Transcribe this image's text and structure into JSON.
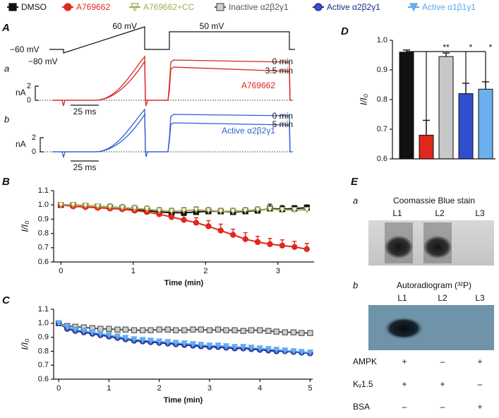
{
  "chart_data": [
    {
      "type": "traces",
      "panel_label": "A",
      "protocol_labels": [
        "60 mV",
        "50 mV",
        "−60 mV",
        "−80 mV"
      ],
      "traces": [
        {
          "label": "a",
          "color": "#d7261e",
          "times": [
            "0 min",
            "3.5 min"
          ],
          "name": "A769662",
          "scale_label": "nA",
          "scale_ticks": [
            2,
            0
          ],
          "time_bar": "25 ms"
        },
        {
          "label": "b",
          "color": "#2f5fd0",
          "times": [
            "0 min",
            "5 min"
          ],
          "name": "Active α2β2γ1",
          "scale_label": "nA",
          "scale_ticks": [
            2,
            0
          ],
          "time_bar": "25 ms"
        }
      ]
    },
    {
      "type": "line",
      "panel_label": "B",
      "xlabel": "Time (min)",
      "ylabel": "I/I₀",
      "xlim": [
        -0.1,
        3.5
      ],
      "xticks": [
        0,
        1,
        2,
        3
      ],
      "ylim": [
        0.6,
        1.1
      ],
      "yticks": [
        0.6,
        0.7,
        0.8,
        0.9,
        {
          "value": 1,
          "label": "1.0"
        },
        1.1
      ],
      "x": [
        0,
        0.17,
        0.34,
        0.51,
        0.68,
        0.85,
        1.02,
        1.19,
        1.36,
        1.53,
        1.7,
        1.87,
        2.04,
        2.21,
        2.38,
        2.55,
        2.72,
        2.89,
        3.06,
        3.23,
        3.4
      ],
      "series": [
        {
          "name": "DMSO",
          "color": "#111111",
          "marker": "square",
          "values": [
            1.0,
            1.0,
            0.995,
            0.99,
            0.985,
            0.98,
            0.97,
            0.96,
            0.95,
            0.945,
            0.945,
            0.95,
            0.955,
            0.955,
            0.95,
            0.955,
            0.96,
            0.975,
            0.97,
            0.975,
            0.98
          ],
          "errors": [
            0.01,
            0.015,
            0.015,
            0.015,
            0.02,
            0.02,
            0.02,
            0.02,
            0.02,
            0.02,
            0.02,
            0.02,
            0.02,
            0.02,
            0.02,
            0.02,
            0.025,
            0.03,
            0.025,
            0.02,
            0.02
          ]
        },
        {
          "name": "A769662",
          "color": "#e0281c",
          "marker": "circle",
          "values": [
            1.0,
            0.99,
            0.985,
            0.98,
            0.975,
            0.97,
            0.96,
            0.95,
            0.935,
            0.915,
            0.895,
            0.875,
            0.85,
            0.82,
            0.79,
            0.76,
            0.74,
            0.725,
            0.715,
            0.705,
            0.69
          ],
          "errors": [
            0.005,
            0.005,
            0.008,
            0.01,
            0.01,
            0.012,
            0.015,
            0.015,
            0.02,
            0.025,
            0.03,
            0.035,
            0.04,
            0.045,
            0.04,
            0.045,
            0.04,
            0.04,
            0.04,
            0.04,
            0.04
          ]
        },
        {
          "name": "A769662+CC",
          "color": "#a8a855",
          "marker": "triangle",
          "values": [
            1.0,
            1.0,
            0.995,
            0.99,
            0.985,
            0.98,
            0.975,
            0.97,
            0.96,
            0.955,
            0.96,
            0.965,
            0.96,
            0.955,
            0.955,
            0.96,
            0.965,
            0.97,
            0.965,
            0.965,
            0.965
          ],
          "errors": [
            0.01,
            0.01,
            0.015,
            0.015,
            0.015,
            0.015,
            0.02,
            0.02,
            0.02,
            0.02,
            0.02,
            0.02,
            0.02,
            0.02,
            0.02,
            0.02,
            0.02,
            0.02,
            0.02,
            0.02,
            0.02
          ]
        }
      ]
    },
    {
      "type": "line",
      "panel_label": "C",
      "xlabel": "Time (min)",
      "ylabel": "I/I₀",
      "xlim": [
        -0.1,
        5.05
      ],
      "xticks": [
        0,
        1,
        2,
        3,
        4,
        5
      ],
      "ylim": [
        0.6,
        1.1
      ],
      "yticks": [
        0.6,
        0.7,
        0.8,
        0.9,
        {
          "value": 1,
          "label": "1.0"
        },
        1.1
      ],
      "x": [
        0,
        0.17,
        0.33,
        0.5,
        0.67,
        0.83,
        1,
        1.17,
        1.33,
        1.5,
        1.67,
        1.83,
        2,
        2.17,
        2.33,
        2.5,
        2.67,
        2.83,
        3,
        3.17,
        3.33,
        3.5,
        3.67,
        3.83,
        4,
        4.17,
        4.33,
        4.5,
        4.67,
        4.83,
        5
      ],
      "series": [
        {
          "name": "Inactive α2β2γ1",
          "color": "#555555",
          "fill": "#d0d0d0",
          "marker": "square",
          "values": [
            1.0,
            0.98,
            0.975,
            0.97,
            0.965,
            0.96,
            0.96,
            0.955,
            0.955,
            0.95,
            0.95,
            0.95,
            0.955,
            0.955,
            0.95,
            0.95,
            0.955,
            0.955,
            0.95,
            0.955,
            0.95,
            0.95,
            0.945,
            0.95,
            0.95,
            0.945,
            0.94,
            0.935,
            0.935,
            0.93,
            0.93
          ],
          "errors": [
            0.005,
            0.01,
            0.015,
            0.015,
            0.015,
            0.015,
            0.015,
            0.015,
            0.015,
            0.015,
            0.015,
            0.015,
            0.015,
            0.015,
            0.015,
            0.015,
            0.015,
            0.015,
            0.015,
            0.015,
            0.015,
            0.015,
            0.015,
            0.015,
            0.015,
            0.015,
            0.015,
            0.015,
            0.015,
            0.015,
            0.015
          ]
        },
        {
          "name": "Active α2β2γ1",
          "color": "#1c2a8c",
          "fill": "#3a4fc8",
          "marker": "circle",
          "values": [
            1.0,
            0.96,
            0.945,
            0.935,
            0.925,
            0.915,
            0.905,
            0.895,
            0.885,
            0.875,
            0.87,
            0.865,
            0.86,
            0.855,
            0.85,
            0.845,
            0.84,
            0.835,
            0.83,
            0.83,
            0.825,
            0.82,
            0.82,
            0.815,
            0.81,
            0.805,
            0.8,
            0.8,
            0.795,
            0.79,
            0.785
          ],
          "errors": [
            0.005,
            0.01,
            0.01,
            0.01,
            0.01,
            0.01,
            0.01,
            0.01,
            0.01,
            0.01,
            0.01,
            0.01,
            0.01,
            0.01,
            0.01,
            0.01,
            0.01,
            0.01,
            0.01,
            0.01,
            0.01,
            0.01,
            0.01,
            0.01,
            0.01,
            0.01,
            0.01,
            0.01,
            0.01,
            0.01,
            0.01
          ]
        },
        {
          "name": "Active α1β1γ1",
          "color": "#5aa5e8",
          "fill": "#6ab0ee",
          "marker": "triangle",
          "values": [
            1.0,
            0.97,
            0.955,
            0.945,
            0.935,
            0.925,
            0.915,
            0.905,
            0.895,
            0.885,
            0.88,
            0.875,
            0.87,
            0.865,
            0.86,
            0.855,
            0.85,
            0.845,
            0.84,
            0.84,
            0.835,
            0.83,
            0.83,
            0.825,
            0.82,
            0.815,
            0.81,
            0.805,
            0.8,
            0.795,
            0.79
          ],
          "errors": [
            0.005,
            0.015,
            0.015,
            0.015,
            0.015,
            0.015,
            0.015,
            0.015,
            0.015,
            0.015,
            0.015,
            0.015,
            0.015,
            0.015,
            0.015,
            0.015,
            0.015,
            0.015,
            0.015,
            0.015,
            0.015,
            0.015,
            0.015,
            0.015,
            0.015,
            0.015,
            0.015,
            0.015,
            0.015,
            0.015,
            0.015
          ]
        }
      ]
    },
    {
      "type": "bar",
      "panel_label": "D",
      "ylabel": "I/I₀",
      "categories": [
        null,
        null,
        null,
        null,
        null
      ],
      "values": [
        0.96,
        0.68,
        0.945,
        0.82,
        0.835
      ],
      "errors": [
        0.007,
        0.05,
        0.012,
        0.035,
        0.025
      ],
      "colors": [
        "#111111",
        "#e0281c",
        "#c8c8c8",
        "#2f4fd0",
        "#6ab0ee"
      ],
      "ylim": [
        0.6,
        1.0
      ],
      "yticks": [
        0.6,
        0.7,
        0.8,
        0.9,
        {
          "value": 1,
          "label": "1.0"
        }
      ],
      "significance": [
        "**",
        "*",
        "*"
      ]
    }
  ],
  "panel_e": {
    "panel_label": "E",
    "gels": [
      {
        "label": "a",
        "title": "Coomassie Blue stain",
        "lanes": [
          "L1",
          "L2",
          "L3"
        ]
      },
      {
        "label": "b",
        "title": "Autoradiogram (³²P)",
        "lanes": [
          "L1",
          "L2",
          "L3"
        ]
      }
    ],
    "rows": [
      {
        "label": "AMPK",
        "cells": [
          "+",
          "–",
          "+"
        ]
      },
      {
        "label": "Kᵥ1.5",
        "cells": [
          "+",
          "+",
          "–"
        ]
      },
      {
        "label": "BSA",
        "cells": [
          "–",
          "–",
          "+"
        ]
      }
    ]
  }
}
